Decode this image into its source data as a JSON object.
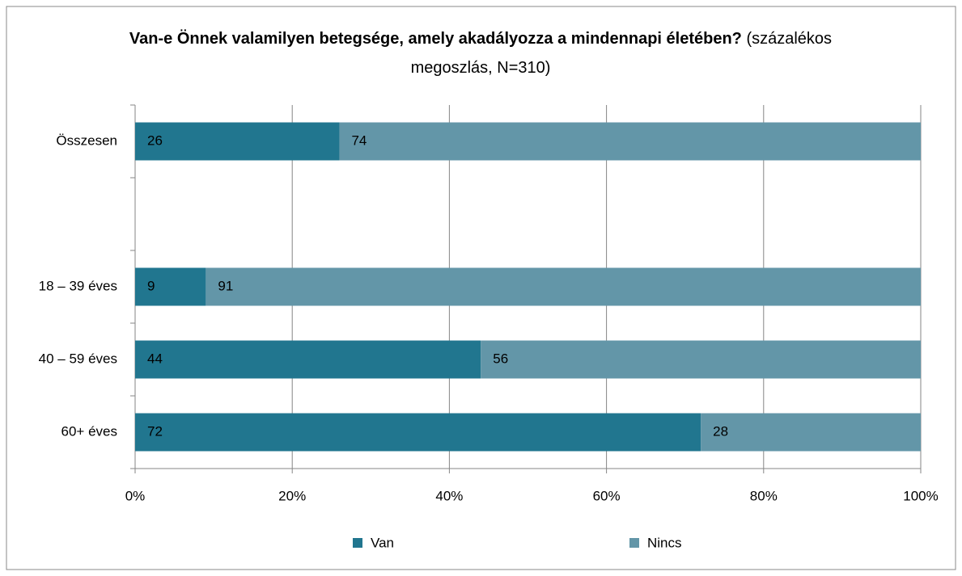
{
  "chart_data": {
    "type": "stacked-bar-horizontal",
    "title": "Van-e Önnek valamilyen betegsége, amely akadályozza a mindennapi életében?",
    "subtitle": "(százalékos megoszlás, N=310)",
    "categories": [
      "Összesen",
      null,
      "18 – 39 éves",
      "40 – 59 éves",
      "60+  éves"
    ],
    "series": [
      {
        "name": "Van",
        "color": "#21768f",
        "values": [
          26,
          null,
          9,
          44,
          72
        ]
      },
      {
        "name": "Nincs",
        "color": "#6396a8",
        "values": [
          74,
          null,
          91,
          56,
          28
        ]
      }
    ],
    "xlim": [
      0,
      100
    ],
    "xticks": [
      {
        "value": 0,
        "label": "0%"
      },
      {
        "value": 20,
        "label": "20%"
      },
      {
        "value": 40,
        "label": "40%"
      },
      {
        "value": 60,
        "label": "60%"
      },
      {
        "value": 80,
        "label": "80%"
      },
      {
        "value": 100,
        "label": "100%"
      }
    ],
    "grid": true,
    "legend": "bottom"
  }
}
